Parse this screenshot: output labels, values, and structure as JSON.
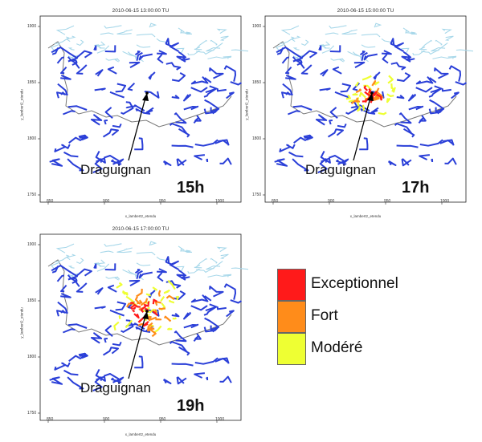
{
  "panels": [
    {
      "title": "2010-06-15 13:00:00 TU",
      "hour_label": "15h",
      "place_label": "Draguignan",
      "flood": [],
      "xlabel": "x_lambert2_etendu",
      "ylabel": "y_lambert2_etendu"
    },
    {
      "title": "2010-06-15 15:00:00 TU",
      "hour_label": "17h",
      "place_label": "Draguignan",
      "flood": [
        "Modéré",
        "Fort",
        "Exceptionnel"
      ],
      "xlabel": "x_lambert2_etendu",
      "ylabel": "y_lambert2_etendu"
    },
    {
      "title": "2010-06-15 17:00:00 TU",
      "hour_label": "19h",
      "place_label": "Draguignan",
      "flood": [
        "Modéré",
        "Fort",
        "Exceptionnel"
      ],
      "xlabel": "x_lambert2_etendu",
      "ylabel": "y_lambert2_etendu"
    }
  ],
  "x_ticks": [
    "850",
    "900",
    "950",
    "1000"
  ],
  "y_ticks": [
    "1900",
    "1850",
    "1800",
    "1750"
  ],
  "legend": [
    {
      "label": "Exceptionnel",
      "color": "#ff1a1a"
    },
    {
      "label": "Fort",
      "color": "#ff8c1a"
    },
    {
      "label": "Modéré",
      "color": "#eeff33"
    }
  ],
  "colors": {
    "river": "#2a3fd8",
    "tributary": "#a8d8ea",
    "coast": "#777777"
  }
}
